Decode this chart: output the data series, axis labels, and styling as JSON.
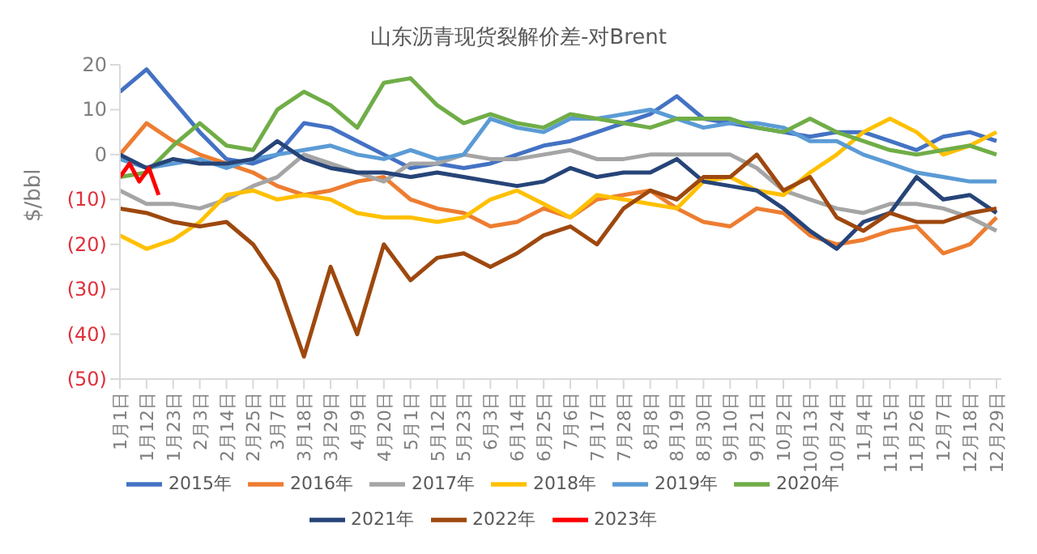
{
  "chart_data": {
    "type": "line",
    "title": "山东沥青现货裂解价差-对Brent",
    "ylabel": "$/bbl",
    "x": [
      "--01-01",
      "--01-12",
      "--01-23",
      "--02-03",
      "--02-14",
      "--02-25",
      "--03-07",
      "--03-18",
      "--03-29",
      "--04-09",
      "--04-20",
      "--05-01",
      "--05-12",
      "--05-23",
      "--06-03",
      "--06-14",
      "--06-25",
      "--07-06",
      "--07-17",
      "--07-28",
      "--08-08",
      "--08-19",
      "--08-30",
      "--09-10",
      "--09-21",
      "--10-02",
      "--10-13",
      "--10-24",
      "--11-04",
      "--11-15",
      "--11-26",
      "--12-07",
      "--12-18",
      "--12-29"
    ],
    "xlim": [
      "--01-01",
      "--12-31"
    ],
    "xticks": [
      {
        "value": "--01-01",
        "label": "1月1日"
      },
      {
        "value": "--01-12",
        "label": "1月12日"
      },
      {
        "value": "--01-23",
        "label": "1月23日"
      },
      {
        "value": "--02-03",
        "label": "2月3日"
      },
      {
        "value": "--02-14",
        "label": "2月14日"
      },
      {
        "value": "--02-25",
        "label": "2月25日"
      },
      {
        "value": "--03-07",
        "label": "3月7日"
      },
      {
        "value": "--03-18",
        "label": "3月18日"
      },
      {
        "value": "--03-29",
        "label": "3月29日"
      },
      {
        "value": "--04-09",
        "label": "4月9日"
      },
      {
        "value": "--04-20",
        "label": "4月20日"
      },
      {
        "value": "--05-01",
        "label": "5月1日"
      },
      {
        "value": "--05-12",
        "label": "5月12日"
      },
      {
        "value": "--05-23",
        "label": "5月23日"
      },
      {
        "value": "--06-03",
        "label": "6月3日"
      },
      {
        "value": "--06-14",
        "label": "6月14日"
      },
      {
        "value": "--06-25",
        "label": "6月25日"
      },
      {
        "value": "--07-06",
        "label": "7月6日"
      },
      {
        "value": "--07-17",
        "label": "7月17日"
      },
      {
        "value": "--07-28",
        "label": "7月28日"
      },
      {
        "value": "--08-08",
        "label": "8月8日"
      },
      {
        "value": "--08-19",
        "label": "8月19日"
      },
      {
        "value": "--08-30",
        "label": "8月30日"
      },
      {
        "value": "--09-10",
        "label": "9月10日"
      },
      {
        "value": "--09-21",
        "label": "9月21日"
      },
      {
        "value": "--10-02",
        "label": "10月2日"
      },
      {
        "value": "--10-13",
        "label": "10月13日"
      },
      {
        "value": "--10-24",
        "label": "10月24日"
      },
      {
        "value": "--11-04",
        "label": "11月4日"
      },
      {
        "value": "--11-15",
        "label": "11月15日"
      },
      {
        "value": "--11-26",
        "label": "11月26日"
      },
      {
        "value": "--12-07",
        "label": "12月7日"
      },
      {
        "value": "--12-18",
        "label": "12月18日"
      },
      {
        "value": "--12-29",
        "label": "12月29日"
      }
    ],
    "ylim": [
      -50,
      20
    ],
    "yticks": [
      {
        "value": 20,
        "label": "20"
      },
      {
        "value": 10,
        "label": "10"
      },
      {
        "value": 0,
        "label": "0"
      },
      {
        "value": -10,
        "label": "(10)"
      },
      {
        "value": -20,
        "label": "(20)"
      },
      {
        "value": -30,
        "label": "(30)"
      },
      {
        "value": -40,
        "label": "(40)"
      },
      {
        "value": -50,
        "label": "(50)"
      }
    ],
    "legend": "bottom",
    "marker": "none",
    "line_style": "solid",
    "series": [
      {
        "name": "2015年",
        "color": "#4472c4",
        "values": [
          14,
          19,
          12,
          5,
          -1,
          -2,
          0,
          7,
          6,
          3,
          0,
          -3,
          -2,
          -3,
          -2,
          0,
          2,
          3,
          5,
          7,
          9,
          13,
          8,
          7,
          6,
          5,
          4,
          5,
          5,
          3,
          1,
          4,
          5,
          3
        ]
      },
      {
        "name": "2016年",
        "color": "#ed7d31",
        "values": [
          0,
          7,
          3,
          0,
          -2,
          -4,
          -7,
          -9,
          -8,
          -6,
          -5,
          -10,
          -12,
          -13,
          -16,
          -15,
          -12,
          -14,
          -10,
          -9,
          -8,
          -12,
          -15,
          -16,
          -12,
          -13,
          -18,
          -20,
          -19,
          -17,
          -16,
          -22,
          -20,
          -14
        ]
      },
      {
        "name": "2017年",
        "color": "#a5a5a5",
        "values": [
          -8,
          -11,
          -11,
          -12,
          -10,
          -7,
          -5,
          0,
          -2,
          -4,
          -6,
          -2,
          -2,
          0,
          -1,
          -1,
          0,
          1,
          -1,
          -1,
          0,
          0,
          0,
          0,
          -3,
          -8,
          -10,
          -12,
          -13,
          -11,
          -11,
          -12,
          -14,
          -17
        ]
      },
      {
        "name": "2018年",
        "color": "#ffc000",
        "values": [
          -18,
          -21,
          -19,
          -15,
          -9,
          -8,
          -10,
          -9,
          -10,
          -13,
          -14,
          -14,
          -15,
          -14,
          -10,
          -8,
          -11,
          -14,
          -9,
          -10,
          -11,
          -12,
          -6,
          -5,
          -8,
          -9,
          -4,
          0,
          5,
          8,
          5,
          0,
          2,
          5
        ]
      },
      {
        "name": "2019年",
        "color": "#5b9bd5",
        "values": [
          -1,
          -3,
          -2,
          -1,
          -3,
          -1,
          0,
          1,
          2,
          0,
          -1,
          1,
          -1,
          0,
          8,
          6,
          5,
          8,
          8,
          9,
          10,
          8,
          6,
          7,
          7,
          6,
          3,
          3,
          0,
          -2,
          -4,
          -5,
          -6,
          -6
        ]
      },
      {
        "name": "2020年",
        "color": "#70ad47",
        "values": [
          -5,
          -4,
          2,
          7,
          2,
          1,
          10,
          14,
          11,
          6,
          16,
          17,
          11,
          7,
          9,
          7,
          6,
          9,
          8,
          7,
          6,
          8,
          8,
          8,
          6,
          5,
          8,
          5,
          3,
          1,
          0,
          1,
          2,
          0
        ]
      },
      {
        "name": "2021年",
        "color": "#264478",
        "values": [
          0,
          -3,
          -1,
          -2,
          -2,
          -1,
          3,
          -1,
          -3,
          -4,
          -4,
          -5,
          -4,
          -5,
          -6,
          -7,
          -6,
          -3,
          -5,
          -4,
          -4,
          -1,
          -6,
          -7,
          -8,
          -12,
          -17,
          -21,
          -15,
          -13,
          -5,
          -10,
          -9,
          -13
        ]
      },
      {
        "name": "2022年",
        "color": "#9e480e",
        "values": [
          -12,
          -13,
          -15,
          -16,
          -15,
          -20,
          -28,
          -45,
          -25,
          -40,
          -20,
          -28,
          -23,
          -22,
          -25,
          -22,
          -18,
          -16,
          -20,
          -12,
          -8,
          -10,
          -5,
          -5,
          0,
          -8,
          -5,
          -14,
          -17,
          -13,
          -15,
          -15,
          -13,
          -12
        ]
      },
      {
        "name": "2023年",
        "color": "#ff0000",
        "x": [
          "--01-01",
          "--01-05",
          "--01-09",
          "--01-13",
          "--01-17"
        ],
        "values": [
          -5,
          -2,
          -6,
          -3,
          -9
        ]
      }
    ]
  }
}
